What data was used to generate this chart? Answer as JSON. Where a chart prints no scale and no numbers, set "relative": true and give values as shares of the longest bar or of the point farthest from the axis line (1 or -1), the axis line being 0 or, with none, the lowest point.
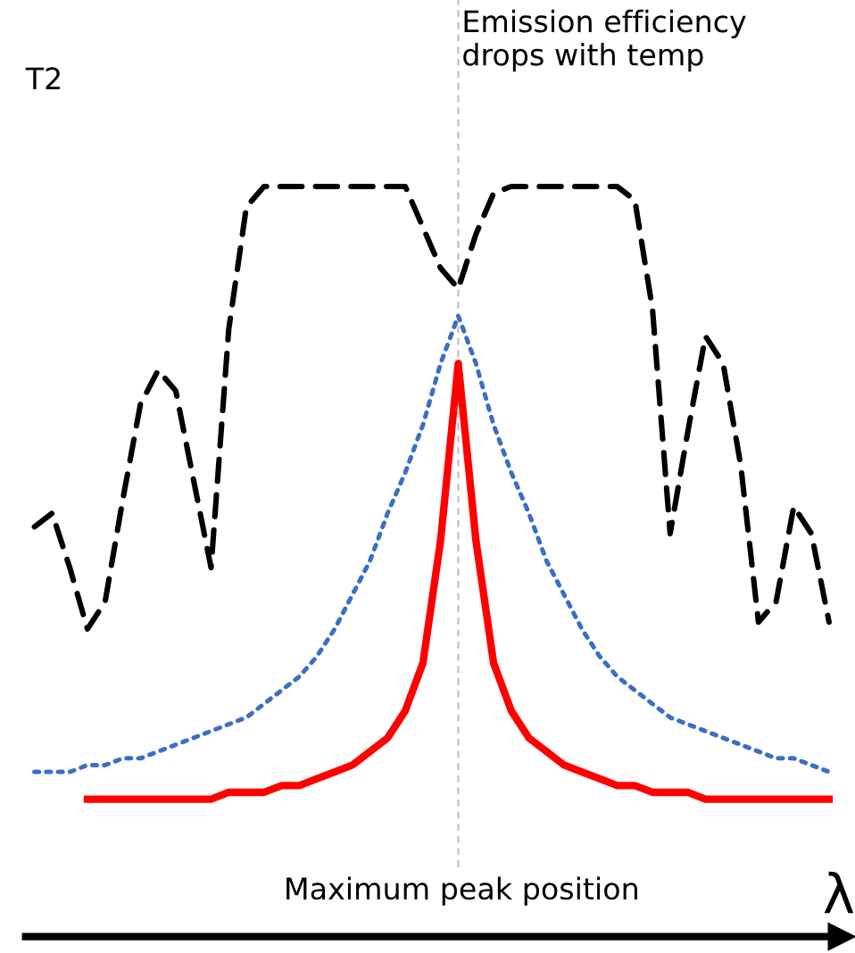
{
  "chart_data": {
    "type": "line",
    "relative": true,
    "xlabel": "λ",
    "categories": [
      null,
      null,
      null,
      null,
      null,
      null,
      null,
      null,
      null,
      null,
      null,
      null,
      null,
      null,
      null,
      null,
      null,
      null,
      null,
      null,
      null,
      null,
      null,
      null,
      null,
      null,
      null,
      null,
      null,
      null,
      null,
      null,
      null,
      null,
      null,
      null,
      null,
      null,
      null,
      null,
      null,
      null,
      null,
      null,
      null,
      null
    ],
    "series": [
      {
        "color": "#000000",
        "line_style": "dashed",
        "values": [
          0.5,
          0.52,
          0.44,
          0.35,
          0.39,
          0.54,
          0.68,
          0.73,
          0.7,
          0.57,
          0.44,
          0.79,
          0.97,
          1,
          1,
          1,
          1,
          1,
          1,
          1,
          1,
          1,
          0.94,
          0.88,
          0.85,
          0.93,
          0.99,
          1,
          1,
          1,
          1,
          1,
          1,
          1,
          0.98,
          0.82,
          0.49,
          0.64,
          0.78,
          0.74,
          0.59,
          0.36,
          0.39,
          0.53,
          0.49,
          0.36
        ]
      },
      {
        "color": "#3a6fc4",
        "line_style": "dotted",
        "values": [
          0.14,
          0.14,
          0.14,
          0.15,
          0.15,
          0.16,
          0.16,
          0.17,
          0.18,
          0.19,
          0.2,
          0.21,
          0.22,
          0.24,
          0.26,
          0.28,
          0.31,
          0.35,
          0.4,
          0.45,
          0.52,
          0.58,
          0.65,
          0.74,
          0.81,
          0.74,
          0.65,
          0.58,
          0.52,
          0.45,
          0.4,
          0.35,
          0.31,
          0.28,
          0.26,
          0.24,
          0.22,
          0.21,
          0.2,
          0.19,
          0.18,
          0.17,
          0.16,
          0.16,
          0.15,
          0.14
        ]
      },
      {
        "color": "#ff0000",
        "line_style": "solid",
        "values": [
          null,
          null,
          null,
          0.1,
          0.1,
          0.1,
          0.1,
          0.1,
          0.1,
          0.1,
          0.1,
          0.11,
          0.11,
          0.11,
          0.12,
          0.12,
          0.13,
          0.14,
          0.15,
          0.17,
          0.19,
          0.23,
          0.3,
          0.48,
          0.74,
          0.48,
          0.3,
          0.23,
          0.19,
          0.17,
          0.15,
          0.14,
          0.13,
          0.12,
          0.12,
          0.11,
          0.11,
          0.11,
          0.1,
          0.1,
          0.1,
          0.1,
          0.1,
          0.1,
          0.1,
          0.1
        ]
      }
    ],
    "annotations": [
      "T2",
      "Emission efficiency\ndrops with temp",
      "Maximum peak position"
    ],
    "legend": false,
    "marker": "none"
  }
}
